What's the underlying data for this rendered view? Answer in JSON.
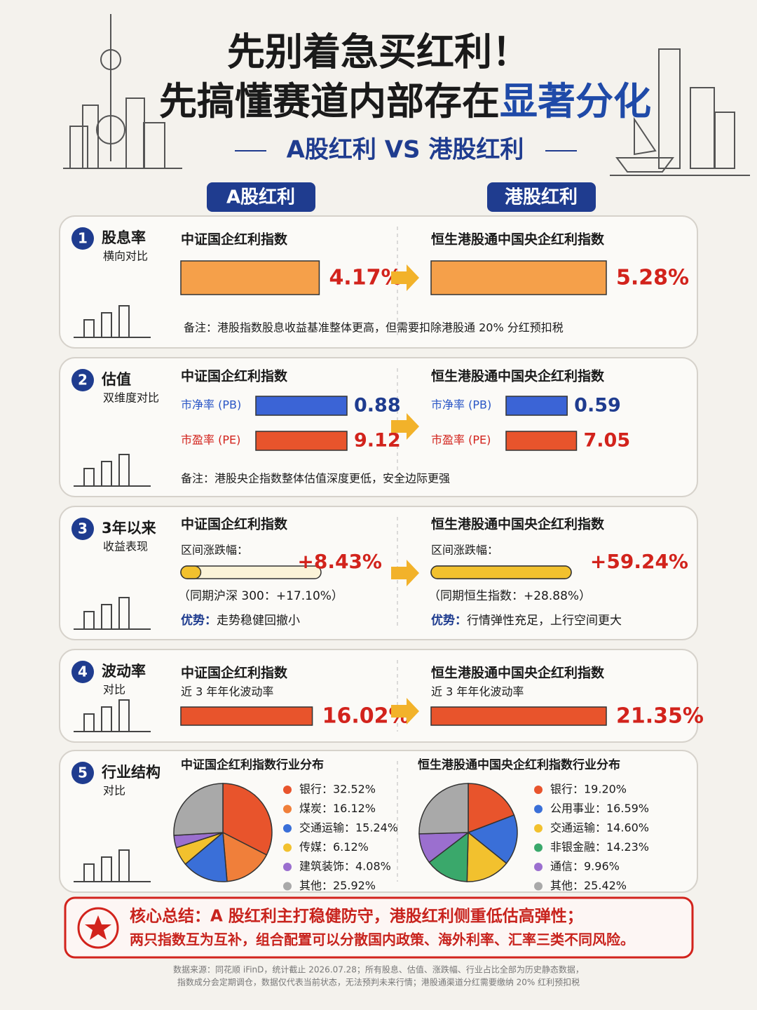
{
  "header": {
    "title_line1": "先别着急买红利！",
    "title_line2": "先搞懂赛道内部存在",
    "title_highlight": "显著分化",
    "subtitle": "A股红利 VS 港股红利"
  },
  "columns": [
    "A股红利",
    "港股红利"
  ],
  "sections": [
    {
      "number": "1",
      "title": "股息率",
      "subtitle": "横向对比",
      "type": "bar",
      "left": {
        "index": "中证国企红利指数",
        "value": 4.17,
        "value_label": "4.17%"
      },
      "right": {
        "index": "恒生港股通中国央企红利指数",
        "value": 5.28,
        "value_label": "5.28%"
      },
      "note": "备注：港股指数股息收益基准整体更高，但需要扣除港股通 20% 分红预扣税"
    },
    {
      "number": "2",
      "title": "估值",
      "subtitle": "双维度对比",
      "type": "paired-bar",
      "metrics": [
        "市净率 (PB)",
        "市盈率 (PE)"
      ],
      "left": {
        "index": "中证国企红利指数",
        "values": [
          0.88,
          9.12
        ]
      },
      "right": {
        "index": "恒生港股通中国央企红利指数",
        "values": [
          0.59,
          7.05
        ]
      },
      "note": "备注：港股央企指数整体估值深度更低，安全边际更强"
    },
    {
      "number": "3",
      "title": "3年以来",
      "subtitle": "收益表现",
      "type": "progress",
      "left": {
        "index": "中证国企红利指数",
        "caption": "区间涨跌幅：",
        "value": 8.43,
        "value_label": "+8.43%",
        "comparison": "（同期沪深 300：+17.10%）",
        "advantage_label": "优势：",
        "advantage": "走势稳健回撤小"
      },
      "right": {
        "index": "恒生港股通中国央企红利指数",
        "caption": "区间涨跌幅：",
        "value": 59.24,
        "value_label": "+59.24%",
        "comparison": "（同期恒生指数：+28.88%）",
        "advantage_label": "优势：",
        "advantage": "行情弹性充足，上行空间更大"
      }
    },
    {
      "number": "4",
      "title": "波动率",
      "subtitle": "对比",
      "type": "bar",
      "left": {
        "index": "中证国企红利指数",
        "caption": "近 3 年年化波动率",
        "value": 16.02,
        "value_label": "16.02%"
      },
      "right": {
        "index": "恒生港股通中国央企红利指数",
        "caption": "近 3 年年化波动率",
        "value": 21.35,
        "value_label": "21.35%"
      }
    },
    {
      "number": "5",
      "title": "行业结构",
      "subtitle": "对比",
      "type": "pie",
      "left": {
        "title": "中证国企红利指数行业分布",
        "slices": [
          {
            "label": "银行：32.52%",
            "value": 32.52,
            "color": "#e8542c"
          },
          {
            "label": "煤炭：16.12%",
            "value": 16.12,
            "color": "#f07f3a"
          },
          {
            "label": "交通运输：15.24%",
            "value": 15.24,
            "color": "#3a6fd8"
          },
          {
            "label": "传媒：6.12%",
            "value": 6.12,
            "color": "#f2c12e"
          },
          {
            "label": "建筑装饰：4.08%",
            "value": 4.08,
            "color": "#9b6fcf"
          },
          {
            "label": "其他：25.92%",
            "value": 25.92,
            "color": "#a9a9a9"
          }
        ]
      },
      "right": {
        "title": "恒生港股通中国央企红利指数行业分布",
        "slices": [
          {
            "label": "银行：19.20%",
            "value": 19.2,
            "color": "#e8542c"
          },
          {
            "label": "公用事业：16.59%",
            "value": 16.59,
            "color": "#3a6fd8"
          },
          {
            "label": "交通运输：14.60%",
            "value": 14.6,
            "color": "#f2c12e"
          },
          {
            "label": "非银金融：14.23%",
            "value": 14.23,
            "color": "#3aa86b"
          },
          {
            "label": "通信：9.96%",
            "value": 9.96,
            "color": "#9b6fcf"
          },
          {
            "label": "其他：25.42%",
            "value": 25.42,
            "color": "#a9a9a9"
          }
        ]
      }
    }
  ],
  "summary": {
    "line1": "核心总结：A 股红利主打稳健防守，港股红利侧重低估高弹性；",
    "line2": "两只指数互为互补，组合配置可以分散国内政策、海外利率、汇率三类不同风险。"
  },
  "footer": [
    "数据来源：同花顺 iFinD，统计截止 2026.07.28；所有股息、估值、涨跌幅、行业占比全部为历史静态数据，",
    "指数成分会定期调仓，数据仅代表当前状态，无法预判未来行情；港股通渠道分红需要缴纳 20% 红利预扣税"
  ]
}
